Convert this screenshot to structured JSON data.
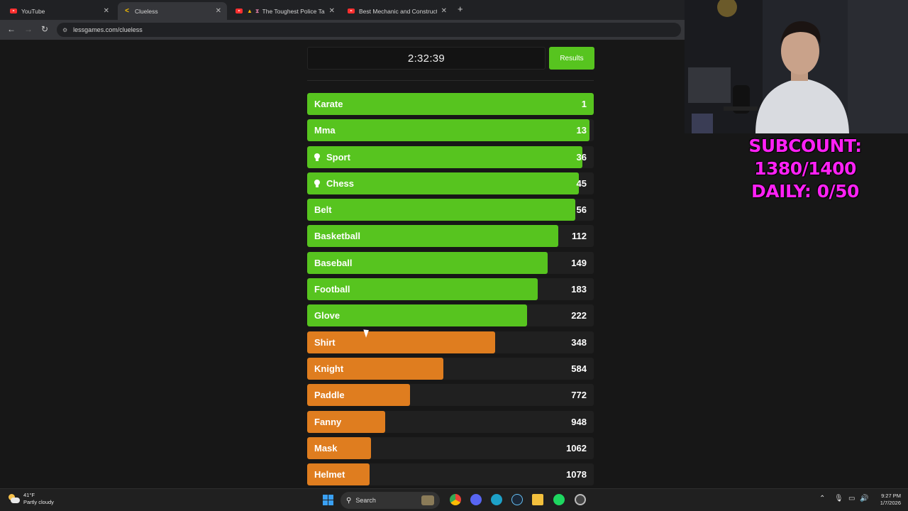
{
  "browser": {
    "tabs": [
      {
        "title": "YouTube",
        "favicon": "youtube-icon",
        "active": false
      },
      {
        "title": "Clueless",
        "favicon": "clueless-icon",
        "active": true
      },
      {
        "title": "The Toughest Police Take",
        "favicon": "youtube-icon",
        "active": false
      },
      {
        "title": "Best Mechanic and Construction",
        "favicon": "youtube-icon",
        "active": false
      }
    ],
    "url": "lessgames.com/clueless"
  },
  "game": {
    "timer": "2:32:39",
    "results_label": "Results",
    "guesses": [
      {
        "word": "Karate",
        "rank": "1",
        "fill": 1.0,
        "color": "#57c41f",
        "hint": false
      },
      {
        "word": "Mma",
        "rank": "13",
        "fill": 0.985,
        "color": "#57c41f",
        "hint": false
      },
      {
        "word": "Sport",
        "rank": "36",
        "fill": 0.96,
        "color": "#57c41f",
        "hint": true
      },
      {
        "word": "Chess",
        "rank": "45",
        "fill": 0.947,
        "color": "#57c41f",
        "hint": true
      },
      {
        "word": "Belt",
        "rank": "56",
        "fill": 0.935,
        "color": "#57c41f",
        "hint": false
      },
      {
        "word": "Basketball",
        "rank": "112",
        "fill": 0.875,
        "color": "#57c41f",
        "hint": false
      },
      {
        "word": "Baseball",
        "rank": "149",
        "fill": 0.84,
        "color": "#57c41f",
        "hint": false
      },
      {
        "word": "Football",
        "rank": "183",
        "fill": 0.805,
        "color": "#57c41f",
        "hint": false
      },
      {
        "word": "Glove",
        "rank": "222",
        "fill": 0.767,
        "color": "#57c41f",
        "hint": false
      },
      {
        "word": "Shirt",
        "rank": "348",
        "fill": 0.656,
        "color": "#df7d1f",
        "hint": false
      },
      {
        "word": "Knight",
        "rank": "584",
        "fill": 0.475,
        "color": "#df7d1f",
        "hint": false
      },
      {
        "word": "Paddle",
        "rank": "772",
        "fill": 0.359,
        "color": "#df7d1f",
        "hint": false
      },
      {
        "word": "Fanny",
        "rank": "948",
        "fill": 0.272,
        "color": "#df7d1f",
        "hint": false
      },
      {
        "word": "Mask",
        "rank": "1062",
        "fill": 0.223,
        "color": "#df7d1f",
        "hint": false
      },
      {
        "word": "Helmet",
        "rank": "1078",
        "fill": 0.218,
        "color": "#df7d1f",
        "hint": false
      }
    ]
  },
  "overlay": {
    "subcount": "SUBCOUNT: 1380/1400",
    "daily": "DAILY: 0/50"
  },
  "taskbar": {
    "temperature": "41°F",
    "weather": "Partly cloudy",
    "search_label": "Search",
    "time": "9:27 PM",
    "date": "1/7/2026"
  }
}
